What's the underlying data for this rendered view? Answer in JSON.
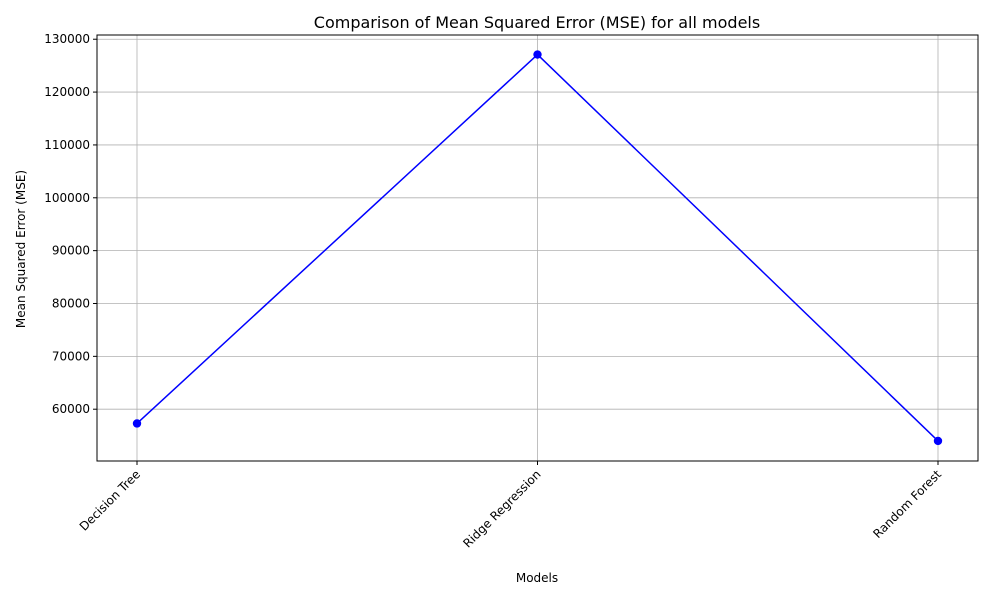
{
  "chart_data": {
    "type": "line",
    "title": "Comparison of Mean Squared Error (MSE) for all models",
    "xlabel": "Models",
    "ylabel": "Mean Squared Error (MSE)",
    "categories": [
      "Decision Tree",
      "Ridge Regression",
      "Random Forest"
    ],
    "values": [
      57300,
      127100,
      54000
    ],
    "ylim": [
      50200,
      130800
    ],
    "yticks": [
      60000,
      70000,
      80000,
      90000,
      100000,
      110000,
      120000,
      130000
    ],
    "ytick_labels": [
      "60000",
      "70000",
      "80000",
      "90000",
      "100000",
      "110000",
      "120000",
      "130000"
    ],
    "grid": true,
    "line_color": "#0000ff",
    "marker": "circle",
    "xtick_rotation_deg": 45
  }
}
